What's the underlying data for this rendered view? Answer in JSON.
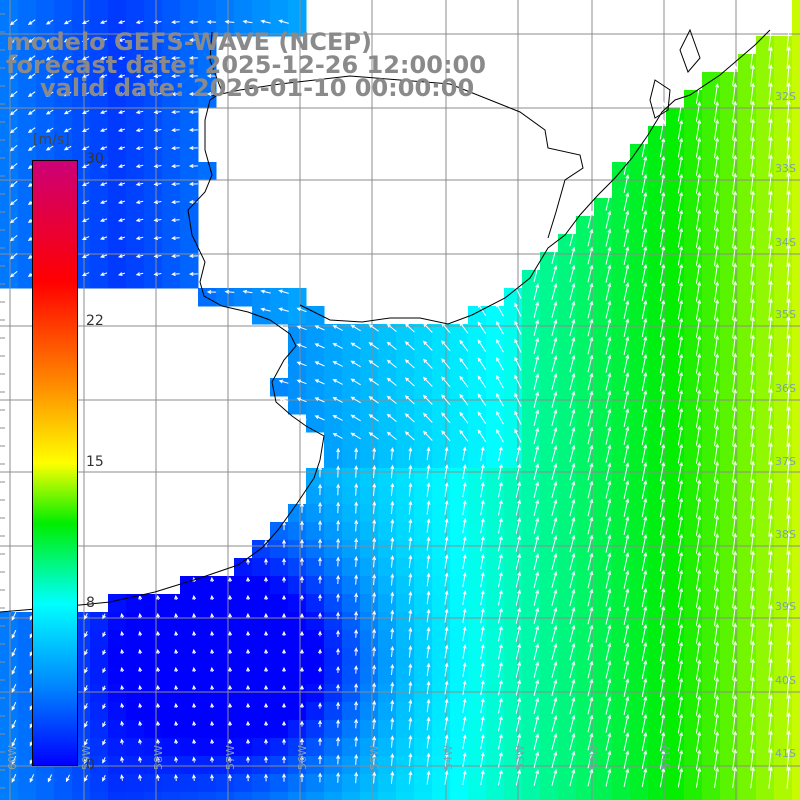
{
  "header": {
    "line1": "modelo GEFS-WAVE (NCEP)",
    "line2": "forecast date: 2025-12-26 12:00:00",
    "line3": "valid date: 2026-01-10 00:00:00"
  },
  "colorbar": {
    "unit": "[m/s]",
    "min": 0,
    "max": 30,
    "ticks": [
      "30",
      "22",
      "15",
      "8",
      "0"
    ],
    "tick_values": [
      30,
      22,
      15,
      8,
      0
    ],
    "stops": [
      {
        "v": 0,
        "color": "#0000ff"
      },
      {
        "v": 4,
        "color": "#0088ff"
      },
      {
        "v": 8,
        "color": "#00ffff"
      },
      {
        "v": 12,
        "color": "#00ee00"
      },
      {
        "v": 15,
        "color": "#ffff00"
      },
      {
        "v": 19,
        "color": "#ff8800"
      },
      {
        "v": 24,
        "color": "#ff0000"
      },
      {
        "v": 30,
        "color": "#cc0077"
      }
    ]
  },
  "axes": {
    "lat_labels": [
      "32S",
      "33S",
      "34S",
      "35S",
      "36S",
      "37S",
      "38S",
      "39S",
      "40S",
      "41S"
    ],
    "lat_values": [
      32,
      33,
      34,
      35,
      36,
      37,
      38,
      39,
      40,
      41
    ],
    "lon_labels": [
      "60W",
      "59W",
      "58W",
      "57W",
      "56W",
      "55W",
      "54W",
      "53W",
      "52W",
      "51W"
    ],
    "lon_values": [
      60,
      59,
      58,
      57,
      56,
      55,
      54,
      53,
      52,
      51
    ]
  },
  "colors": {
    "grid": "#8c8c8c",
    "coast": "#000000",
    "land": "#ffffff",
    "arrow": "#ffffff"
  }
}
